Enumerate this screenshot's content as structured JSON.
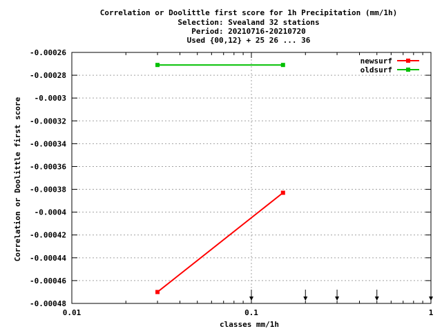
{
  "chart_data": {
    "type": "line",
    "title_lines": [
      "Correlation or Doolittle first score  for 1h Precipitation (mm/1h)",
      "Selection: Svealand     32 stations",
      "Period: 20210716-20210720",
      "Used {00,12} + 25 26 ... 36"
    ],
    "xlabel": "classes mm/1h",
    "ylabel": "Correlation or Doolittle first score",
    "x_scale": "log",
    "xlim": [
      0.01,
      1
    ],
    "ylim": [
      -0.00048,
      -0.00026
    ],
    "x_ticks": [
      0.01,
      0.1,
      1
    ],
    "x_tick_labels": [
      "0.01",
      "0.1",
      "1"
    ],
    "y_ticks": [
      -0.00026,
      -0.00028,
      -0.0003,
      -0.00032,
      -0.00034,
      -0.00036,
      -0.00038,
      -0.0004,
      -0.00042,
      -0.00044,
      -0.00046,
      -0.00048
    ],
    "y_tick_labels": [
      "-0.00026",
      "-0.00028",
      "-0.0003",
      "-0.00032",
      "-0.00034",
      "-0.00036",
      "-0.00038",
      "-0.0004",
      "-0.00042",
      "-0.00044",
      "-0.00046",
      "-0.00048"
    ],
    "grid": true,
    "legend_position": "top-right",
    "series": [
      {
        "name": "newsurf",
        "color": "#ff0000",
        "x": [
          0.03,
          0.15
        ],
        "values": [
          -0.00047,
          -0.000383
        ]
      },
      {
        "name": "oldsurf",
        "color": "#00c000",
        "x": [
          0.03,
          0.15
        ],
        "values": [
          -0.000271,
          -0.000271
        ]
      }
    ],
    "class_markers": [
      0.1,
      0.2,
      0.3,
      0.5,
      1.0
    ],
    "class_marker_icon": "down-arrow-icon"
  }
}
